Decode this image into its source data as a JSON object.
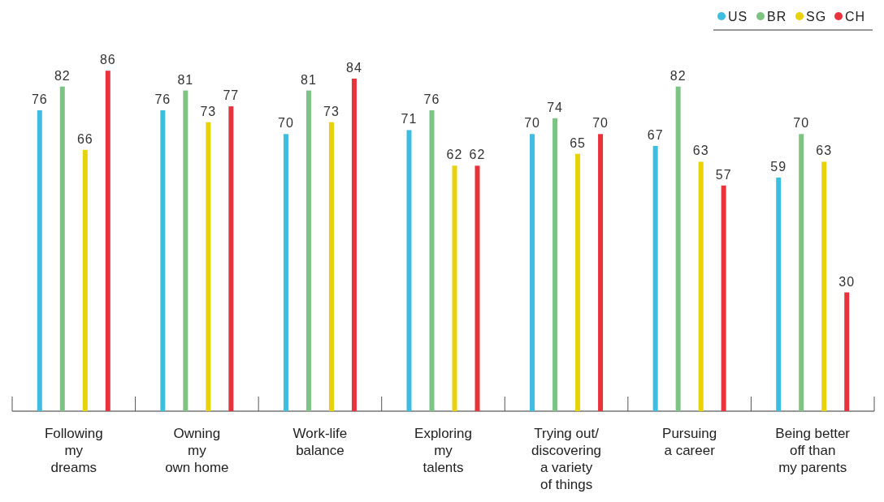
{
  "chart_data": {
    "type": "bar",
    "categories": [
      "Following\nmy\ndreams",
      "Owning\nmy\nown home",
      "Work-life\nbalance",
      "Exploring\nmy\ntalents",
      "Trying out/\ndiscovering\na variety\nof things",
      "Pursuing\na career",
      "Being better\noff than\nmy parents"
    ],
    "series": [
      {
        "name": "US",
        "color": "#3dbde0",
        "values": [
          76,
          76,
          70,
          71,
          70,
          67,
          59
        ]
      },
      {
        "name": "BR",
        "color": "#7dc383",
        "values": [
          82,
          81,
          81,
          76,
          74,
          82,
          70
        ]
      },
      {
        "name": "SG",
        "color": "#e8d20a",
        "values": [
          66,
          73,
          73,
          62,
          65,
          63,
          63
        ]
      },
      {
        "name": "CH",
        "color": "#e8333c",
        "values": [
          86,
          77,
          84,
          62,
          70,
          57,
          30
        ]
      }
    ],
    "data_labels": true,
    "legend": "top right"
  }
}
